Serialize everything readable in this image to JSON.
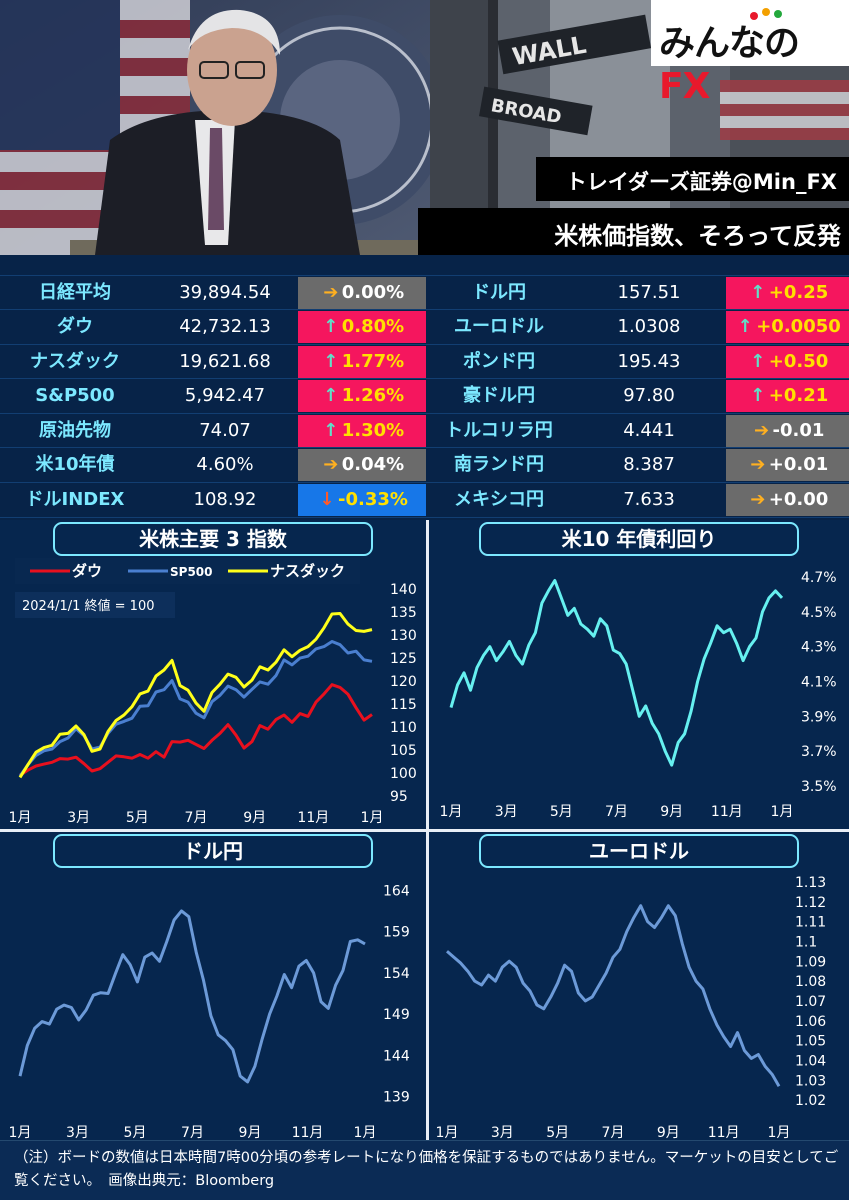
{
  "header": {
    "logo_text": "みんなの",
    "logo_fx": "FX",
    "source": "トレイダーズ証券@Min_FX",
    "headline": "米株価指数、そろって反発"
  },
  "board": {
    "left": [
      {
        "name": "日経平均",
        "value": "39,894.54",
        "change": "0.00%",
        "dir": "flat"
      },
      {
        "name": "ダウ",
        "value": "42,732.13",
        "change": "0.80%",
        "dir": "up"
      },
      {
        "name": "ナスダック",
        "value": "19,621.68",
        "change": "1.77%",
        "dir": "up"
      },
      {
        "name": "S&P500",
        "value": "5,942.47",
        "change": "1.26%",
        "dir": "up"
      },
      {
        "name": "原油先物",
        "value": "74.07",
        "change": "1.30%",
        "dir": "up"
      },
      {
        "name": "米10年債",
        "value": "4.60%",
        "change": "0.04%",
        "dir": "flat"
      },
      {
        "name": "ドルINDEX",
        "value": "108.92",
        "change": "-0.33%",
        "dir": "down"
      }
    ],
    "right": [
      {
        "name": "ドル円",
        "value": "157.51",
        "change": "+0.25",
        "dir": "up"
      },
      {
        "name": "ユーロドル",
        "value": "1.0308",
        "change": "+0.0050",
        "dir": "up"
      },
      {
        "name": "ポンド円",
        "value": "195.43",
        "change": "+0.50",
        "dir": "up"
      },
      {
        "name": "豪ドル円",
        "value": "97.80",
        "change": "+0.21",
        "dir": "up"
      },
      {
        "name": "トルコリラ円",
        "value": "4.441",
        "change": "-0.01",
        "dir": "flat"
      },
      {
        "name": "南ランド円",
        "value": "8.387",
        "change": "+0.01",
        "dir": "flat"
      },
      {
        "name": "メキシコ円",
        "value": "7.633",
        "change": "+0.00",
        "dir": "flat"
      }
    ]
  },
  "colors": {
    "dow": "#e8101e",
    "sp500": "#4a7fd0",
    "nasdaq": "#ffff1a",
    "yield": "#66f0f0",
    "usdjpy": "#6c9ad8",
    "eurusd": "#6c9ad8"
  },
  "chart_data": [
    {
      "type": "line",
      "title": "米株主要 3 指数",
      "annotation": "2024/1/1 終値 = 100",
      "x_ticks": [
        "1月",
        "3月",
        "5月",
        "7月",
        "9月",
        "11月",
        "1月"
      ],
      "y_ticks": [
        95,
        100,
        105,
        110,
        115,
        120,
        125,
        130,
        135,
        140
      ],
      "ylim": [
        93,
        142
      ],
      "legend_position": "top-left",
      "series": [
        {
          "name": "ダウ",
          "values": [
            99.5,
            100.6,
            101.5,
            101.9,
            102.3,
            103.1,
            103.0,
            103.4,
            102.0,
            100.4,
            100.9,
            102.3,
            103.7,
            103.5,
            103.2,
            104.0,
            103.2,
            104.6,
            103.4,
            106.8,
            106.7,
            107.1,
            106.2,
            105.3,
            107.1,
            108.6,
            110.5,
            108.2,
            105.4,
            106.8,
            110.3,
            109.5,
            111.6,
            112.6,
            111.0,
            112.9,
            112.3,
            115.4,
            117.2,
            119.2,
            118.6,
            117.1,
            114.2,
            111.5,
            112.7
          ]
        },
        {
          "name": "SP500",
          "values": [
            99.3,
            101.8,
            103.8,
            104.8,
            105.2,
            106.8,
            107.6,
            109.6,
            108.1,
            105.2,
            105.6,
            108.6,
            110.6,
            111.2,
            111.9,
            114.5,
            114.6,
            117.6,
            118.1,
            120.1,
            116.1,
            115.4,
            113.0,
            112.0,
            115.5,
            116.9,
            118.9,
            118.1,
            116.5,
            118.2,
            119.8,
            119.3,
            121.2,
            124.6,
            123.5,
            125.0,
            125.4,
            127.0,
            127.5,
            128.6,
            127.9,
            126.1,
            126.5,
            124.6,
            124.3
          ]
        },
        {
          "name": "ナスダック",
          "values": [
            99.0,
            101.8,
            104.5,
            105.5,
            106.0,
            108.4,
            108.6,
            110.2,
            108.3,
            104.7,
            105.2,
            109.0,
            111.4,
            112.6,
            114.4,
            117.2,
            117.8,
            121.1,
            122.4,
            124.5,
            119.0,
            118.0,
            115.2,
            113.4,
            117.5,
            119.3,
            121.5,
            120.8,
            118.7,
            120.2,
            123.1,
            122.4,
            124.1,
            126.8,
            125.3,
            126.7,
            127.5,
            129.1,
            131.6,
            134.6,
            134.7,
            132.4,
            131.0,
            130.8,
            131.2
          ]
        }
      ]
    },
    {
      "type": "line",
      "title": "米10 年債利回り",
      "x_ticks": [
        "1月",
        "3月",
        "5月",
        "7月",
        "9月",
        "11月",
        "1月"
      ],
      "y_ticks": [
        "3.5%",
        "3.7%",
        "3.9%",
        "4.1%",
        "4.3%",
        "4.5%",
        "4.7%"
      ],
      "ylim": [
        3.5,
        4.7
      ],
      "series": [
        {
          "name": "",
          "values": [
            3.95,
            4.08,
            4.15,
            4.05,
            4.18,
            4.25,
            4.3,
            4.22,
            4.27,
            4.33,
            4.25,
            4.2,
            4.31,
            4.38,
            4.55,
            4.62,
            4.68,
            4.58,
            4.48,
            4.52,
            4.43,
            4.4,
            4.36,
            4.46,
            4.42,
            4.28,
            4.26,
            4.2,
            4.05,
            3.9,
            3.96,
            3.86,
            3.8,
            3.7,
            3.62,
            3.75,
            3.8,
            3.93,
            4.1,
            4.23,
            4.32,
            4.42,
            4.38,
            4.4,
            4.32,
            4.22,
            4.3,
            4.35,
            4.5,
            4.58,
            4.62,
            4.58
          ]
        }
      ]
    },
    {
      "type": "line",
      "title": "ドル円",
      "x_ticks": [
        "1月",
        "3月",
        "5月",
        "7月",
        "9月",
        "11月",
        "1月"
      ],
      "y_ticks": [
        139,
        144,
        149,
        154,
        159,
        164
      ],
      "ylim": [
        138,
        165
      ],
      "series": [
        {
          "name": "",
          "values": [
            141.5,
            145.2,
            147.3,
            148.1,
            147.8,
            149.6,
            150.1,
            149.8,
            148.3,
            149.5,
            151.3,
            151.6,
            151.5,
            153.9,
            156.2,
            155.0,
            152.9,
            155.9,
            156.4,
            155.4,
            157.8,
            160.4,
            161.5,
            160.8,
            156.5,
            153.1,
            148.8,
            146.5,
            145.8,
            144.7,
            141.5,
            140.8,
            142.7,
            146.0,
            149.0,
            151.2,
            153.8,
            152.2,
            154.8,
            155.5,
            154.0,
            150.5,
            149.7,
            152.5,
            154.3,
            157.8,
            158.0,
            157.5
          ]
        }
      ]
    },
    {
      "type": "line",
      "title": "ユーロドル",
      "x_ticks": [
        "1月",
        "3月",
        "5月",
        "7月",
        "9月",
        "11月",
        "1月"
      ],
      "y_ticks": [
        1.02,
        1.03,
        1.04,
        1.05,
        1.06,
        1.07,
        1.08,
        1.09,
        1.1,
        1.11,
        1.12,
        1.13
      ],
      "ylim": [
        1.015,
        1.135
      ],
      "series": [
        {
          "name": "",
          "values": [
            1.095,
            1.092,
            1.089,
            1.085,
            1.08,
            1.078,
            1.083,
            1.08,
            1.087,
            1.09,
            1.087,
            1.079,
            1.075,
            1.068,
            1.066,
            1.072,
            1.079,
            1.088,
            1.085,
            1.074,
            1.07,
            1.072,
            1.078,
            1.084,
            1.092,
            1.096,
            1.105,
            1.112,
            1.118,
            1.11,
            1.107,
            1.112,
            1.118,
            1.113,
            1.099,
            1.087,
            1.08,
            1.076,
            1.066,
            1.058,
            1.052,
            1.047,
            1.054,
            1.045,
            1.041,
            1.043,
            1.037,
            1.033,
            1.027
          ]
        }
      ]
    }
  ],
  "footer": {
    "note": "（注）ボードの数値は日本時間7時00分頃の参考レートになり価格を保証するものではありません。マーケットの目安としてご覧ください。　画像出典元：Bloomberg"
  }
}
